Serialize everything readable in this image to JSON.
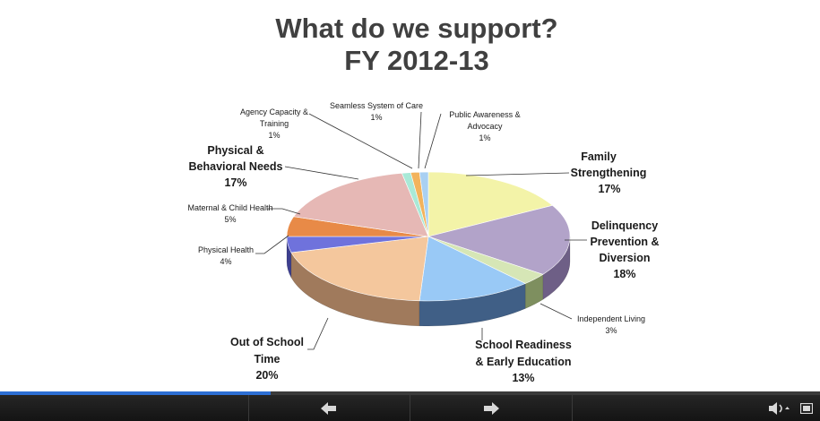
{
  "slide": {
    "title_line1": "What do we support?",
    "title_line2": "FY 2012-13"
  },
  "chart_data": {
    "type": "pie",
    "title": "What do we support? FY 2012-13",
    "slices": [
      {
        "label": "Family Strengthening",
        "value": 17,
        "display": "17%",
        "color": "#f3f3a8",
        "side": "#b6b66a"
      },
      {
        "label": "Delinquency Prevention & Diversion",
        "value": 18,
        "display": "18%",
        "color": "#b2a3c9",
        "side": "#6e5f86"
      },
      {
        "label": "Independent Living",
        "value": 3,
        "display": "3%",
        "color": "#d6e6b6",
        "side": "#7e8f5f"
      },
      {
        "label": "School Readiness & Early Education",
        "value": 13,
        "display": "13%",
        "color": "#99c9f6",
        "side": "#405f86"
      },
      {
        "label": "Out of School Time",
        "value": 20,
        "display": "20%",
        "color": "#f4c79d",
        "side": "#a07a5c"
      },
      {
        "label": "Physical Health",
        "value": 4,
        "display": "4%",
        "color": "#6f72dc",
        "side": "#3d3f8f"
      },
      {
        "label": "Maternal & Child Health",
        "value": 5,
        "display": "5%",
        "color": "#e88a47",
        "side": "#9c5526"
      },
      {
        "label": "Physical & Behavioral Needs",
        "value": 17,
        "display": "17%",
        "color": "#e6b8b5",
        "side": "#9b706d"
      },
      {
        "label": "Agency Capacity & Training",
        "value": 1,
        "display": "1%",
        "color": "#a9e9d7",
        "side": "#5c9c8a"
      },
      {
        "label": "Seamless System of Care",
        "value": 1,
        "display": "1%",
        "color": "#f2b35c",
        "side": "#a67630"
      },
      {
        "label": "Public Awareness & Advocacy",
        "value": 1,
        "display": "1%",
        "color": "#a9d0f2",
        "side": "#5a85a8"
      }
    ]
  },
  "labels": {
    "family": {
      "l1": "Family",
      "l2": "Strengthening",
      "pct": "17%"
    },
    "delinquency": {
      "l1": "Delinquency",
      "l2": "Prevention &",
      "l3": "Diversion",
      "pct": "18%"
    },
    "independent": {
      "l1": "Independent Living",
      "pct": "3%"
    },
    "school": {
      "l1": "School Readiness",
      "l2": "& Early Education",
      "pct": "13%"
    },
    "outofschool": {
      "l1": "Out of School",
      "l2": "Time",
      "pct": "20%"
    },
    "physical": {
      "l1": "Physical Health",
      "pct": "4%"
    },
    "maternal": {
      "l1": "Maternal & Child Health",
      "pct": "5%"
    },
    "behavioral": {
      "l1": "Physical &",
      "l2": "Behavioral Needs",
      "pct": "17%"
    },
    "agency": {
      "l1": "Agency Capacity &",
      "l2": "Training",
      "pct": "1%"
    },
    "seamless": {
      "l1": "Seamless System of Care",
      "pct": "1%"
    },
    "awareness": {
      "l1": "Public Awareness &",
      "l2": "Advocacy",
      "pct": "1%"
    }
  },
  "player": {
    "progress": 0.33,
    "icons": {
      "prev": "arrow-left-icon",
      "next": "arrow-right-icon",
      "volume": "volume-icon",
      "fullscreen": "fullscreen-icon"
    },
    "colors": {
      "accent": "#2d6fd4",
      "bar": "#1c1c1c"
    }
  }
}
